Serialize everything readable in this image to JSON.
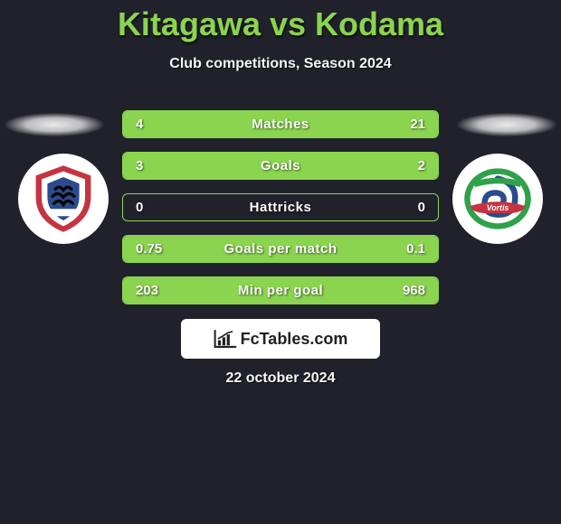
{
  "title": "Kitagawa vs Kodama",
  "subtitle": "Club competitions, Season 2024",
  "date": "22 october 2024",
  "brand": "FcTables.com",
  "colors": {
    "accent": "#8bd44f",
    "background": "#21212b",
    "text": "#f7f7f7",
    "brand_bg": "#ffffff",
    "brand_text": "#222222"
  },
  "stats": [
    {
      "label": "Matches",
      "left_value": "4",
      "right_value": "21",
      "left_pct": 16,
      "right_pct": 84
    },
    {
      "label": "Goals",
      "left_value": "3",
      "right_value": "2",
      "left_pct": 60,
      "right_pct": 40
    },
    {
      "label": "Hattricks",
      "left_value": "0",
      "right_value": "0",
      "left_pct": 0,
      "right_pct": 0
    },
    {
      "label": "Goals per match",
      "left_value": "0.75",
      "right_value": "0.1",
      "left_pct": 88,
      "right_pct": 12
    },
    {
      "label": "Min per goal",
      "left_value": "203",
      "right_value": "968",
      "left_pct": 17,
      "right_pct": 83
    }
  ],
  "crest_left": {
    "name": "asiatic-crest",
    "outer": "#c53441",
    "inner": "#ffffff",
    "accent1": "#2a4b8d",
    "accent2": "#000000"
  },
  "crest_right": {
    "name": "tokushima-vortis-crest",
    "outer": "#2fa14a",
    "inner": "#ffffff",
    "swirl": "#2a4b8d",
    "ribbon": "#c53441"
  }
}
